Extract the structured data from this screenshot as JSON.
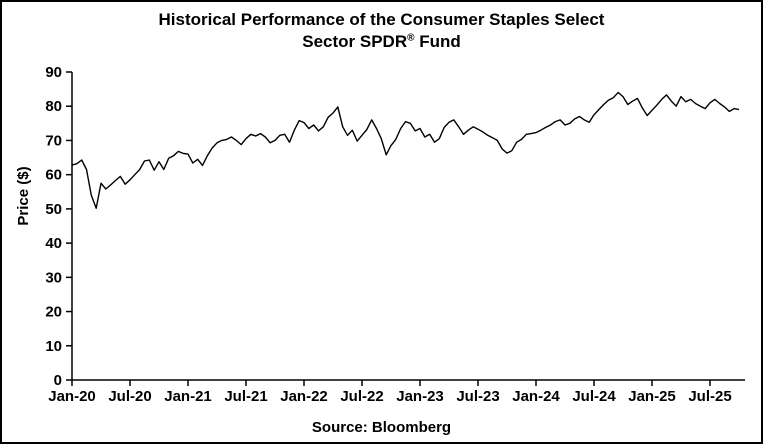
{
  "title": {
    "line1": "Historical Performance of the Consumer Staples Select",
    "line2_prefix": "Sector SPDR",
    "line2_sup": "®",
    "line2_suffix": " Fund"
  },
  "source": "Source: Bloomberg",
  "chart_data": {
    "type": "line",
    "title": "Historical Performance of the Consumer Staples Select Sector SPDR® Fund",
    "xlabel": "",
    "ylabel": "Price ($)",
    "ylim": [
      0,
      90
    ],
    "y_ticks": [
      0,
      10,
      20,
      30,
      40,
      50,
      60,
      70,
      80,
      90
    ],
    "x_tick_labels": [
      "Jan-20",
      "Jul-20",
      "Jan-21",
      "Jul-21",
      "Jan-22",
      "Jul-22",
      "Jan-23",
      "Jul-23",
      "Jan-24",
      "Jul-24",
      "Jan-25",
      "Jul-25"
    ],
    "points_per_month": 2,
    "x_tick_interval_months": 6,
    "grid": false,
    "legend": "none",
    "line_color": "#000000",
    "series": [
      {
        "name": "Consumer Staples Select Sector SPDR Fund price",
        "unit": "USD",
        "values": [
          62.8,
          63.2,
          64.3,
          61.5,
          54.0,
          50.2,
          57.5,
          55.8,
          57.0,
          58.3,
          59.5,
          57.2,
          58.5,
          60.0,
          61.5,
          64.0,
          64.3,
          61.3,
          63.8,
          61.5,
          64.8,
          65.5,
          66.8,
          66.2,
          66.0,
          63.4,
          64.5,
          62.7,
          65.5,
          67.8,
          69.3,
          70.0,
          70.3,
          71.0,
          70.0,
          68.8,
          70.5,
          71.8,
          71.3,
          72.0,
          71.0,
          69.3,
          70.0,
          71.5,
          71.8,
          69.5,
          73.0,
          75.8,
          75.2,
          73.5,
          74.5,
          72.8,
          74.0,
          76.8,
          78.0,
          79.8,
          74.0,
          71.5,
          73.0,
          69.8,
          71.5,
          73.2,
          76.0,
          73.5,
          70.5,
          65.8,
          68.5,
          70.3,
          73.5,
          75.5,
          75.0,
          72.8,
          73.5,
          71.0,
          71.8,
          69.5,
          70.5,
          73.8,
          75.3,
          76.0,
          74.0,
          71.8,
          73.0,
          74.0,
          73.3,
          72.5,
          71.5,
          70.8,
          70.0,
          67.5,
          66.3,
          67.0,
          69.5,
          70.3,
          71.8,
          72.0,
          72.3,
          73.0,
          73.8,
          74.5,
          75.5,
          76.0,
          74.5,
          75.0,
          76.3,
          77.0,
          76.0,
          75.3,
          77.5,
          79.0,
          80.5,
          81.8,
          82.5,
          84.0,
          82.8,
          80.5,
          81.5,
          82.3,
          79.5,
          77.3,
          78.8,
          80.3,
          82.0,
          83.3,
          81.5,
          80.0,
          82.8,
          81.3,
          82.0,
          80.8,
          80.0,
          79.3,
          81.0,
          82.0,
          80.8,
          79.8,
          78.5,
          79.3,
          79.0
        ]
      }
    ]
  }
}
